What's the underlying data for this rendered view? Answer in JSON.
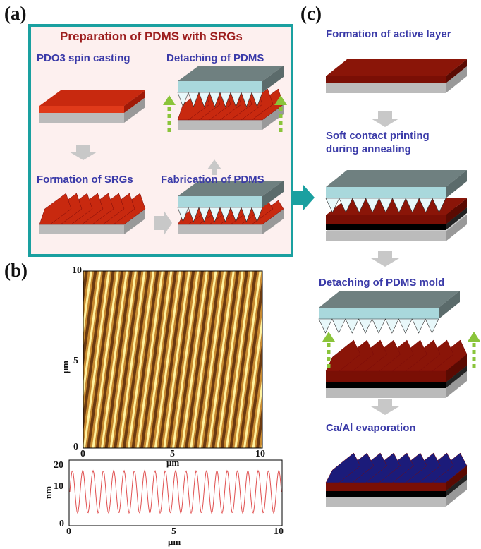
{
  "panels": {
    "a": {
      "label": "(a)",
      "title": "Preparation of PDMS with SRGs",
      "steps": [
        "PDO3 spin casting",
        "Detaching of PDMS",
        "Formation of SRGs",
        "Fabrication of PDMS"
      ]
    },
    "b": {
      "label": "(b)",
      "afm": {
        "x_label": "μm",
        "y_label": "μm",
        "xticks": [
          "0",
          "5",
          "10"
        ],
        "yticks": [
          "0",
          "5",
          "10"
        ]
      },
      "profile": {
        "x_label": "μm",
        "y_label": "nm",
        "xticks": [
          "0",
          "5",
          "10"
        ],
        "yticks": [
          "0",
          "10",
          "20"
        ]
      }
    },
    "c": {
      "label": "(c)",
      "steps": [
        "Formation of active layer",
        "Soft contact printing",
        "during annealing",
        "Detaching of PDMS mold",
        "Ca/Al evaporation"
      ]
    }
  }
}
